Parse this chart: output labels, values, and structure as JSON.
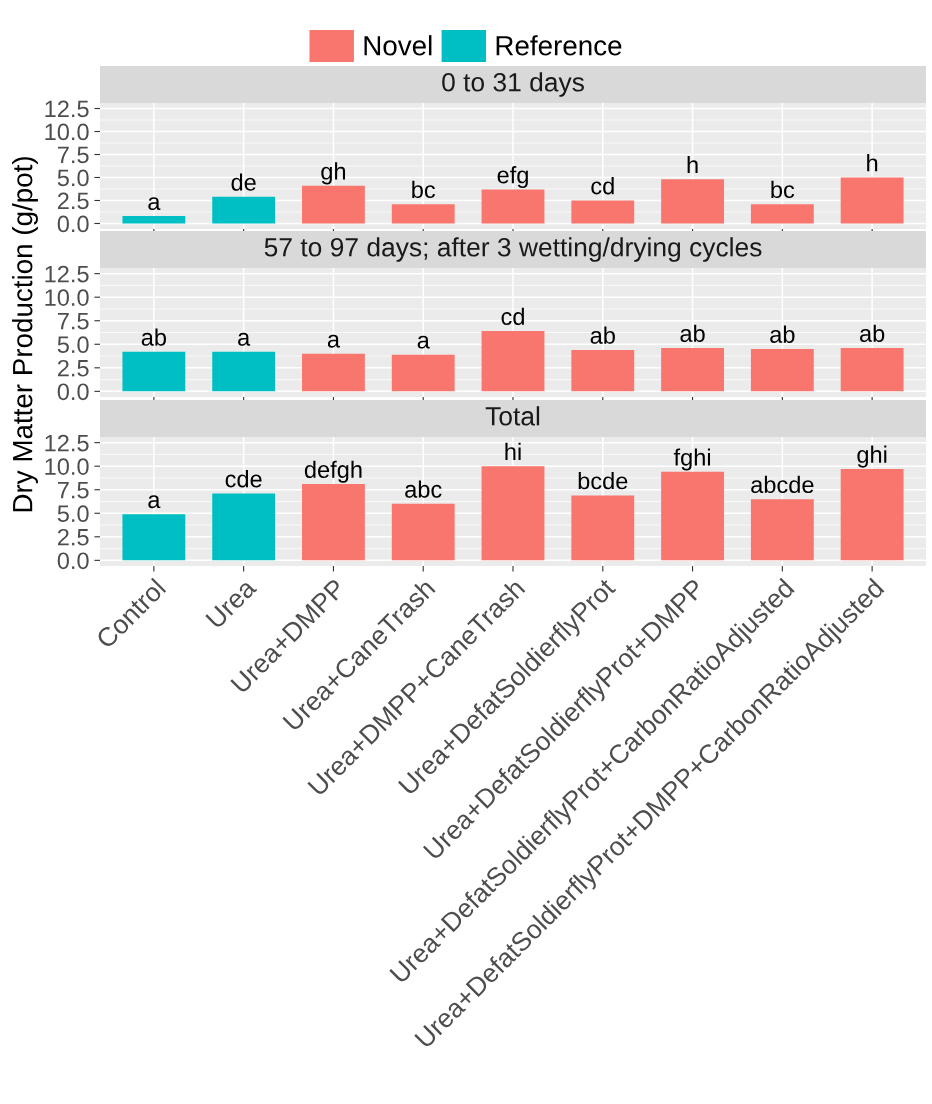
{
  "chart_data": [
    {
      "type": "bar",
      "title": "0 to 31 days",
      "categories": [
        null,
        null,
        null,
        null,
        null,
        null,
        null,
        null,
        null
      ],
      "series": [
        {
          "name": "Novel",
          "color": "#f8766d",
          "values": [
            null,
            null,
            4.1,
            2.1,
            3.7,
            2.5,
            4.8,
            2.1,
            5.0
          ],
          "value_labels": [
            null,
            null,
            "gh",
            "bc",
            "efg",
            "cd",
            "h",
            "bc",
            "h"
          ]
        },
        {
          "name": "Reference",
          "color": "#00bfc4",
          "values": [
            0.8,
            2.9,
            null,
            null,
            null,
            null,
            null,
            null,
            null
          ],
          "value_labels": [
            "a",
            "de",
            null,
            null,
            null,
            null,
            null,
            null,
            null
          ]
        }
      ],
      "ylim": [
        -0.6,
        13.1
      ],
      "yticks": [
        {
          "value": 0,
          "label": "0.0"
        },
        {
          "value": 2.5,
          "label": "2.5"
        },
        {
          "value": 5,
          "label": "5.0"
        },
        {
          "value": 7.5,
          "label": "7.5"
        },
        {
          "value": 10,
          "label": "10.0"
        },
        {
          "value": 12.5,
          "label": "12.5"
        }
      ],
      "grid": true,
      "legend": "top",
      "tick_labels": "y"
    },
    {
      "type": "bar",
      "title": "57 to 97 days; after 3 wetting/drying cycles",
      "ylabel": "Dry Matter Production (g/pot)",
      "categories": [
        null,
        null,
        null,
        null,
        null,
        null,
        null,
        null,
        null
      ],
      "series": [
        {
          "color": "#f8766d",
          "values": [
            null,
            null,
            4.0,
            3.9,
            6.4,
            4.4,
            4.6,
            4.5,
            4.6
          ],
          "value_labels": [
            null,
            null,
            "a",
            "a",
            "cd",
            "ab",
            "ab",
            "ab",
            "ab"
          ]
        },
        {
          "color": "#00bfc4",
          "values": [
            4.2,
            4.2,
            null,
            null,
            null,
            null,
            null,
            null,
            null
          ],
          "value_labels": [
            "ab",
            "a",
            null,
            null,
            null,
            null,
            null,
            null,
            null
          ]
        }
      ],
      "ylim": [
        -0.6,
        13.1
      ],
      "yticks": [
        {
          "value": 0,
          "label": "0.0"
        },
        {
          "value": 2.5,
          "label": "2.5"
        },
        {
          "value": 5,
          "label": "5.0"
        },
        {
          "value": 7.5,
          "label": "7.5"
        },
        {
          "value": 10,
          "label": "10.0"
        },
        {
          "value": 12.5,
          "label": "12.5"
        }
      ],
      "grid": true,
      "tick_labels": "y"
    },
    {
      "type": "bar",
      "title": "Total",
      "categories": [
        "Control",
        "Urea",
        "Urea+DMPP",
        "Urea+CaneTrash",
        "Urea+DMPP+CaneTrash",
        "Urea+DefatSoldierflyProt",
        "Urea+DefatSoldierflyProt+DMPP",
        "Urea+DefatSoldierflyProt+CarbonRatioAdjusted",
        "Urea+DefatSoldierflyProt+DMPP+CarbonRatioAdjusted"
      ],
      "series": [
        {
          "color": "#f8766d",
          "values": [
            null,
            null,
            8.1,
            6.0,
            10.0,
            6.9,
            9.4,
            6.5,
            9.7
          ],
          "value_labels": [
            null,
            null,
            "defgh",
            "abc",
            "hi",
            "bcde",
            "fghi",
            "abcde",
            "ghi"
          ]
        },
        {
          "color": "#00bfc4",
          "values": [
            4.9,
            7.1,
            null,
            null,
            null,
            null,
            null,
            null,
            null
          ],
          "value_labels": [
            "a",
            "cde",
            null,
            null,
            null,
            null,
            null,
            null,
            null
          ]
        }
      ],
      "ylim": [
        -0.6,
        13.1
      ],
      "yticks": [
        {
          "value": 0,
          "label": "0.0"
        },
        {
          "value": 2.5,
          "label": "2.5"
        },
        {
          "value": 5,
          "label": "5.0"
        },
        {
          "value": 7.5,
          "label": "7.5"
        },
        {
          "value": 10,
          "label": "10.0"
        },
        {
          "value": 12.5,
          "label": "12.5"
        }
      ],
      "grid": true
    }
  ]
}
